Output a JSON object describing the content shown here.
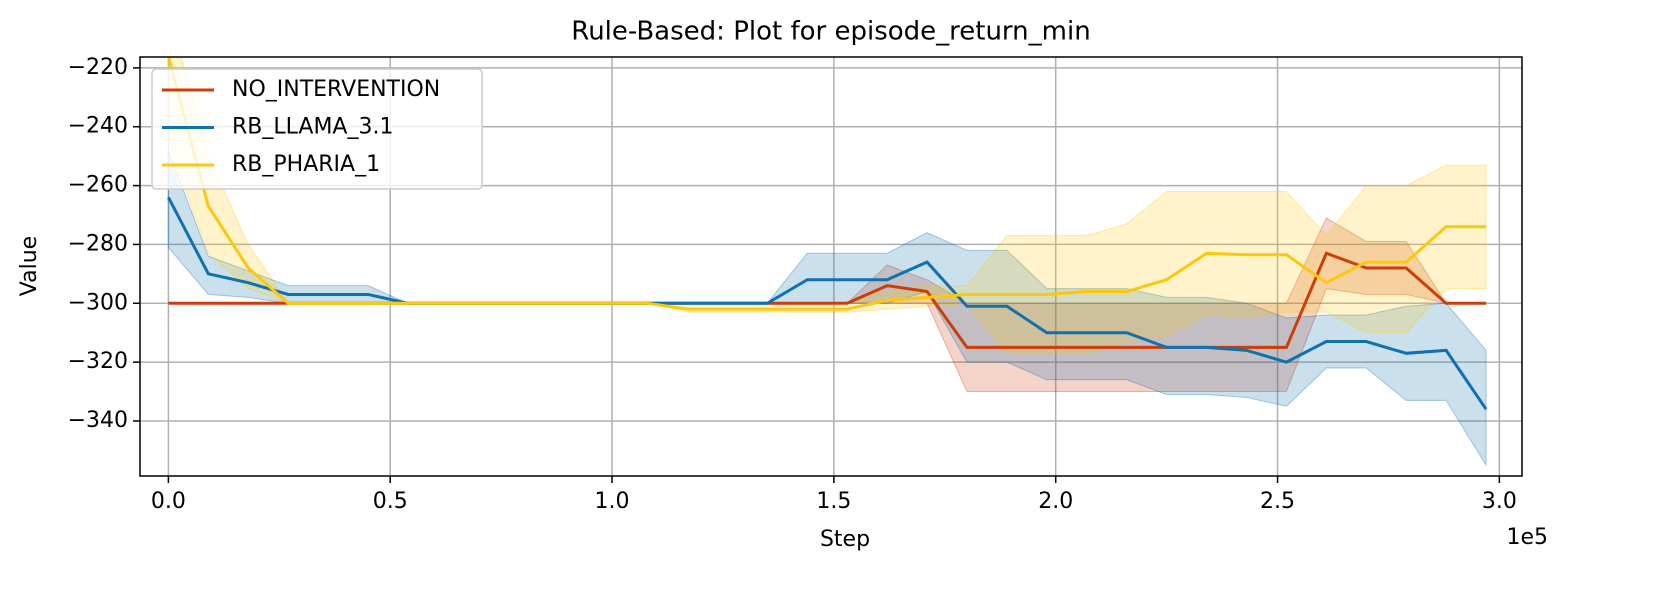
{
  "chart_data": {
    "type": "line",
    "title": "Rule-Based: Plot for episode_return_min",
    "x_label": "Step",
    "y_label": "Value",
    "x_offset_label": "1e5",
    "x": [
      0,
      9000,
      18000,
      27000,
      36000,
      45000,
      54000,
      63000,
      72000,
      81000,
      90000,
      99000,
      108000,
      117000,
      126000,
      135000,
      144000,
      153000,
      162000,
      171000,
      180000,
      189000,
      198000,
      207000,
      216000,
      225000,
      234000,
      243000,
      252000,
      261000,
      270000,
      279000,
      288000,
      297000
    ],
    "series": [
      {
        "name": "NO_INTERVENTION",
        "color": "#cc3d0a",
        "values": [
          -300,
          -300,
          -300,
          -300,
          -300,
          -300,
          -300,
          -300,
          -300,
          -300,
          -300,
          -300,
          -300,
          -300,
          -300,
          -300,
          -300,
          -300,
          -294,
          -296,
          -315,
          -315,
          -315,
          -315,
          -315,
          -315,
          -315,
          -315,
          -315,
          -283,
          -288,
          -288,
          -300,
          -300
        ],
        "lower": [
          -300,
          -300,
          -300,
          -300,
          -300,
          -300,
          -300,
          -300,
          -300,
          -300,
          -300,
          -300,
          -300,
          -300,
          -300,
          -300,
          -300,
          -300,
          -300,
          -300,
          -330,
          -330,
          -330,
          -330,
          -330,
          -330,
          -330,
          -330,
          -330,
          -295,
          -297,
          -297,
          -300,
          -300
        ],
        "upper": [
          -300,
          -300,
          -300,
          -300,
          -300,
          -300,
          -300,
          -300,
          -300,
          -300,
          -300,
          -300,
          -300,
          -300,
          -300,
          -300,
          -300,
          -300,
          -287,
          -292,
          -300,
          -300,
          -300,
          -300,
          -300,
          -300,
          -300,
          -300,
          -300,
          -271,
          -279,
          -279,
          -300,
          -300
        ]
      },
      {
        "name": "RB_LLAMA_3.1",
        "color": "#1170ae",
        "values": [
          -264,
          -290,
          -293,
          -297,
          -297,
          -297,
          -300,
          -300,
          -300,
          -300,
          -300,
          -300,
          -300,
          -300,
          -300,
          -300,
          -292,
          -292,
          -292,
          -286,
          -301,
          -301,
          -310,
          -310,
          -310,
          -315,
          -315,
          -316,
          -320,
          -313,
          -313,
          -317,
          -316,
          -336
        ],
        "lower": [
          -281,
          -297,
          -298,
          -300,
          -300,
          -300,
          -300,
          -300,
          -300,
          -300,
          -300,
          -300,
          -300,
          -300,
          -300,
          -300,
          -300,
          -300,
          -300,
          -296,
          -320,
          -320,
          -326,
          -326,
          -326,
          -331,
          -331,
          -332,
          -335,
          -322,
          -322,
          -333,
          -333,
          -355
        ],
        "upper": [
          -248,
          -284,
          -289,
          -294,
          -294,
          -294,
          -300,
          -300,
          -300,
          -300,
          -300,
          -300,
          -300,
          -300,
          -300,
          -300,
          -283,
          -283,
          -283,
          -276,
          -282,
          -282,
          -295,
          -295,
          -295,
          -298,
          -298,
          -300,
          -305,
          -304,
          -304,
          -301,
          -300,
          -316
        ]
      },
      {
        "name": "RB_PHARIA_1",
        "color": "#fbc80c",
        "values": [
          -216,
          -267,
          -288,
          -300,
          -300,
          -300,
          -300,
          -300,
          -300,
          -300,
          -300,
          -300,
          -300,
          -302,
          -302,
          -302,
          -302,
          -302,
          -299,
          -298,
          -297,
          -297,
          -297,
          -296,
          -296,
          -292,
          -283,
          -283.5,
          -283.5,
          -293,
          -286,
          -286,
          -274,
          -274
        ],
        "lower": [
          -245,
          -283,
          -295,
          -300,
          -300,
          -300,
          -300,
          -300,
          -300,
          -300,
          -300,
          -300,
          -300,
          -303,
          -303,
          -303,
          -303,
          -303,
          -302,
          -301,
          -300,
          -317,
          -317,
          -317,
          -313,
          -311,
          -304,
          -305,
          -303,
          -303,
          -310,
          -310,
          -295,
          -295
        ],
        "upper": [
          -200,
          -250,
          -280,
          -300,
          -300,
          -300,
          -300,
          -300,
          -300,
          -300,
          -300,
          -300,
          -300,
          -300,
          -300,
          -300,
          -300,
          -300,
          -296,
          -294,
          -294,
          -277,
          -277,
          -277,
          -273,
          -262,
          -262,
          -262,
          -262,
          -277,
          -260,
          -260,
          -253,
          -253
        ]
      }
    ],
    "xlim": [
      -6400,
      305100
    ],
    "ylim": [
      -358.7,
      -216.3
    ],
    "xticks": [
      {
        "value": 0,
        "label": "0.0"
      },
      {
        "value": 50000,
        "label": "0.5"
      },
      {
        "value": 100000,
        "label": "1.0"
      },
      {
        "value": 150000,
        "label": "1.5"
      },
      {
        "value": 200000,
        "label": "2.0"
      },
      {
        "value": 250000,
        "label": "2.5"
      },
      {
        "value": 300000,
        "label": "3.0"
      }
    ],
    "yticks": [
      {
        "value": -340,
        "label": "−340"
      },
      {
        "value": -320,
        "label": "−320"
      },
      {
        "value": -300,
        "label": "−300"
      },
      {
        "value": -280,
        "label": "−280"
      },
      {
        "value": -260,
        "label": "−260"
      },
      {
        "value": -240,
        "label": "−240"
      },
      {
        "value": -220,
        "label": "−220"
      }
    ],
    "grid": true,
    "legend": "upper left"
  }
}
